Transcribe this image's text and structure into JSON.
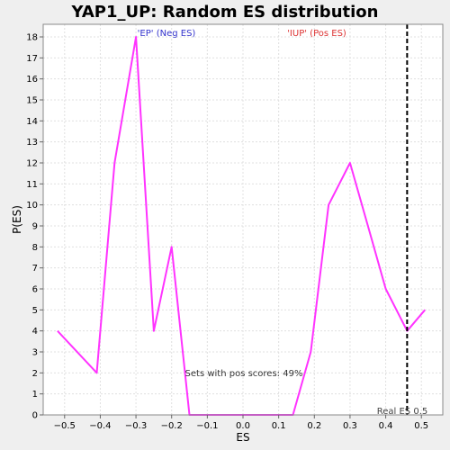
{
  "chart_data": {
    "type": "line",
    "title": "YAP1_UP: Random ES distribution",
    "xlabel": "ES",
    "ylabel": "P(ES)",
    "xlim": [
      -0.56,
      0.56
    ],
    "ylim": [
      0,
      18.6
    ],
    "x_ticks": [
      -0.5,
      -0.4,
      -0.3,
      -0.2,
      -0.1,
      0.0,
      0.1,
      0.2,
      0.3,
      0.4,
      0.5
    ],
    "x_tick_labels": [
      "−0.5",
      "−0.4",
      "−0.3",
      "−0.2",
      "−0.1",
      "0.0",
      "0.1",
      "0.2",
      "0.3",
      "0.4",
      "0.5"
    ],
    "y_ticks": [
      0,
      1,
      2,
      3,
      4,
      5,
      6,
      7,
      8,
      9,
      10,
      11,
      12,
      13,
      14,
      15,
      16,
      17,
      18
    ],
    "grid": true,
    "series": [
      {
        "color": "#ff33ff",
        "x": [
          -0.52,
          -0.41,
          -0.36,
          -0.3,
          -0.25,
          -0.2,
          -0.15,
          -0.1,
          0.0,
          0.08,
          0.14,
          0.19,
          0.24,
          0.3,
          0.35,
          0.4,
          0.46,
          0.51
        ],
        "y": [
          4,
          2,
          12,
          18,
          4,
          8,
          0,
          0,
          0,
          0,
          0,
          3,
          10,
          12,
          9,
          6,
          4,
          5
        ]
      }
    ],
    "real_es": {
      "x": 0.46,
      "label": "Real ES 0.5"
    },
    "annotations": [
      {
        "text": "'EP' (Neg ES)",
        "color": "#3333cc"
      },
      {
        "text": "'IUP' (Pos ES)",
        "color": "#dd3333"
      },
      {
        "text": "Sets with pos scores: 49%",
        "color": "#333333"
      }
    ]
  }
}
